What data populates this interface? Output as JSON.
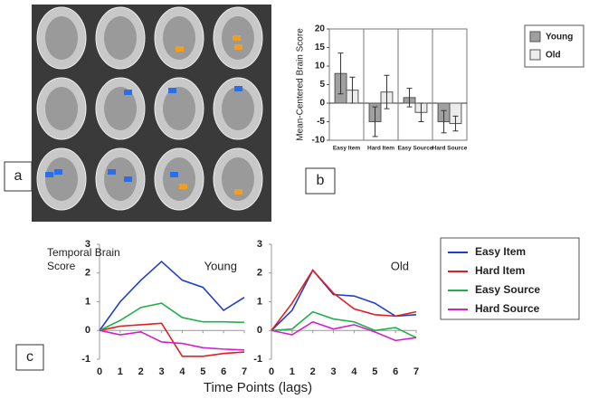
{
  "panel_labels": [
    "a",
    "b",
    "c"
  ],
  "x_axis_label": "Time Points (lags)",
  "chart_data": [
    {
      "type": "bar",
      "ylabel": "Mean-Centered Brain Score",
      "categories": [
        "Easy Item",
        "Hard Item",
        "Easy Source",
        "Hard Source"
      ],
      "series": [
        {
          "name": "Young",
          "color": "#a0a0a0",
          "values": [
            8,
            -5,
            1.5,
            -5
          ],
          "errors": [
            5.5,
            4,
            2.5,
            3
          ]
        },
        {
          "name": "Old",
          "color": "#ececec",
          "values": [
            3.5,
            3,
            -2.5,
            -5.5
          ],
          "errors": [
            3.5,
            4.5,
            2.5,
            2
          ]
        }
      ],
      "ylim": [
        -10,
        20
      ],
      "yticks": [
        -10,
        -5,
        0,
        5,
        10,
        15,
        20
      ],
      "legend": "right"
    },
    {
      "type": "line",
      "ylabel": "Temporal Brain Score",
      "annotation": "Young",
      "x": [
        0,
        1,
        2,
        3,
        4,
        5,
        6,
        7
      ],
      "series": [
        {
          "name": "Easy Item",
          "color": "#1f3fc8",
          "values": [
            0,
            1,
            1.75,
            2.4,
            1.75,
            1.5,
            0.7,
            1.15
          ]
        },
        {
          "name": "Hard Item",
          "color": "#e02020",
          "values": [
            0,
            0.15,
            0.2,
            0.25,
            -0.9,
            -0.9,
            -0.8,
            -0.75
          ]
        },
        {
          "name": "Easy Source",
          "color": "#22b04a",
          "values": [
            0,
            0.35,
            0.8,
            0.95,
            0.45,
            0.3,
            0.3,
            0.28
          ]
        },
        {
          "name": "Hard Source",
          "color": "#d020c8",
          "values": [
            0,
            -0.15,
            -0.05,
            -0.4,
            -0.45,
            -0.6,
            -0.65,
            -0.68
          ]
        }
      ],
      "xlim": [
        0,
        7
      ],
      "xticks": [
        0,
        1,
        2,
        3,
        4,
        5,
        6,
        7
      ],
      "ylim": [
        -1,
        3
      ],
      "yticks": [
        -1,
        0,
        1,
        2,
        3
      ],
      "legend": "right"
    },
    {
      "type": "line",
      "annotation": "Old",
      "x": [
        0,
        1,
        2,
        3,
        4,
        5,
        6,
        7
      ],
      "series": [
        {
          "name": "Easy Item",
          "color": "#1f3fc8",
          "values": [
            0,
            0.7,
            2.1,
            1.25,
            1.2,
            0.95,
            0.5,
            0.55
          ]
        },
        {
          "name": "Hard Item",
          "color": "#e02020",
          "values": [
            0,
            0.95,
            2.1,
            1.3,
            0.75,
            0.55,
            0.5,
            0.65
          ]
        },
        {
          "name": "Easy Source",
          "color": "#22b04a",
          "values": [
            0,
            0.05,
            0.65,
            0.4,
            0.3,
            0,
            0.1,
            -0.25
          ]
        },
        {
          "name": "Hard Source",
          "color": "#d020c8",
          "values": [
            0,
            -0.15,
            0.3,
            0.05,
            0.2,
            -0.05,
            -0.35,
            -0.25
          ]
        }
      ],
      "xlim": [
        0,
        7
      ],
      "xticks": [
        0,
        1,
        2,
        3,
        4,
        5,
        6,
        7
      ],
      "ylim": [
        -1,
        3
      ],
      "yticks": [
        -1,
        0,
        1,
        2,
        3
      ]
    }
  ]
}
